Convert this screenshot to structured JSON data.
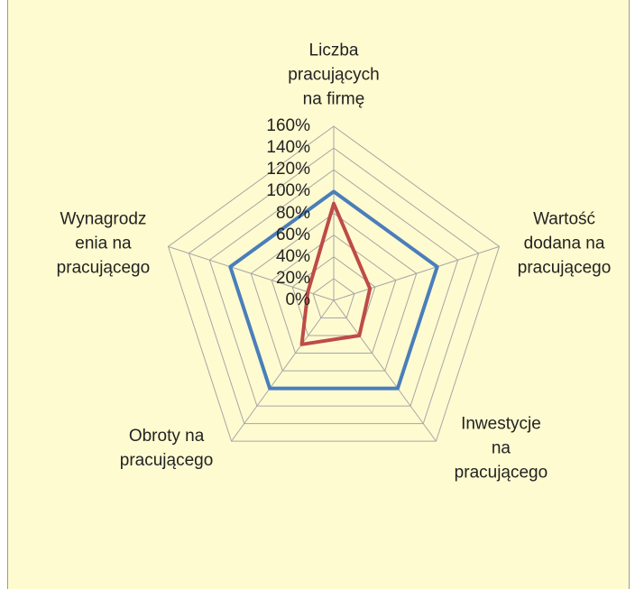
{
  "chart_data": {
    "type": "radar",
    "categories": [
      "Liczba\npracujących\nna firmę",
      "Wartość\ndodana na\npracującego",
      "Inwestycje\nna\npracującego",
      "Obroty na\npracującego",
      "Wynagrodz\nenia na\npracującego"
    ],
    "series": [
      {
        "color": "#4a7ebb",
        "values": [
          100,
          100,
          100,
          100,
          100
        ]
      },
      {
        "color": "#be4b48",
        "values": [
          89,
          35,
          40,
          50,
          25
        ]
      }
    ],
    "ylim": [
      0,
      160
    ],
    "yticks": [
      {
        "value": 0,
        "label": "0%"
      },
      {
        "value": 20,
        "label": "20%"
      },
      {
        "value": 40,
        "label": "40%"
      },
      {
        "value": 60,
        "label": "60%"
      },
      {
        "value": 80,
        "label": "80%"
      },
      {
        "value": 100,
        "label": "100%"
      },
      {
        "value": 120,
        "label": "120%"
      },
      {
        "value": 140,
        "label": "140%"
      },
      {
        "value": 160,
        "label": "160%"
      }
    ],
    "grid": true
  }
}
